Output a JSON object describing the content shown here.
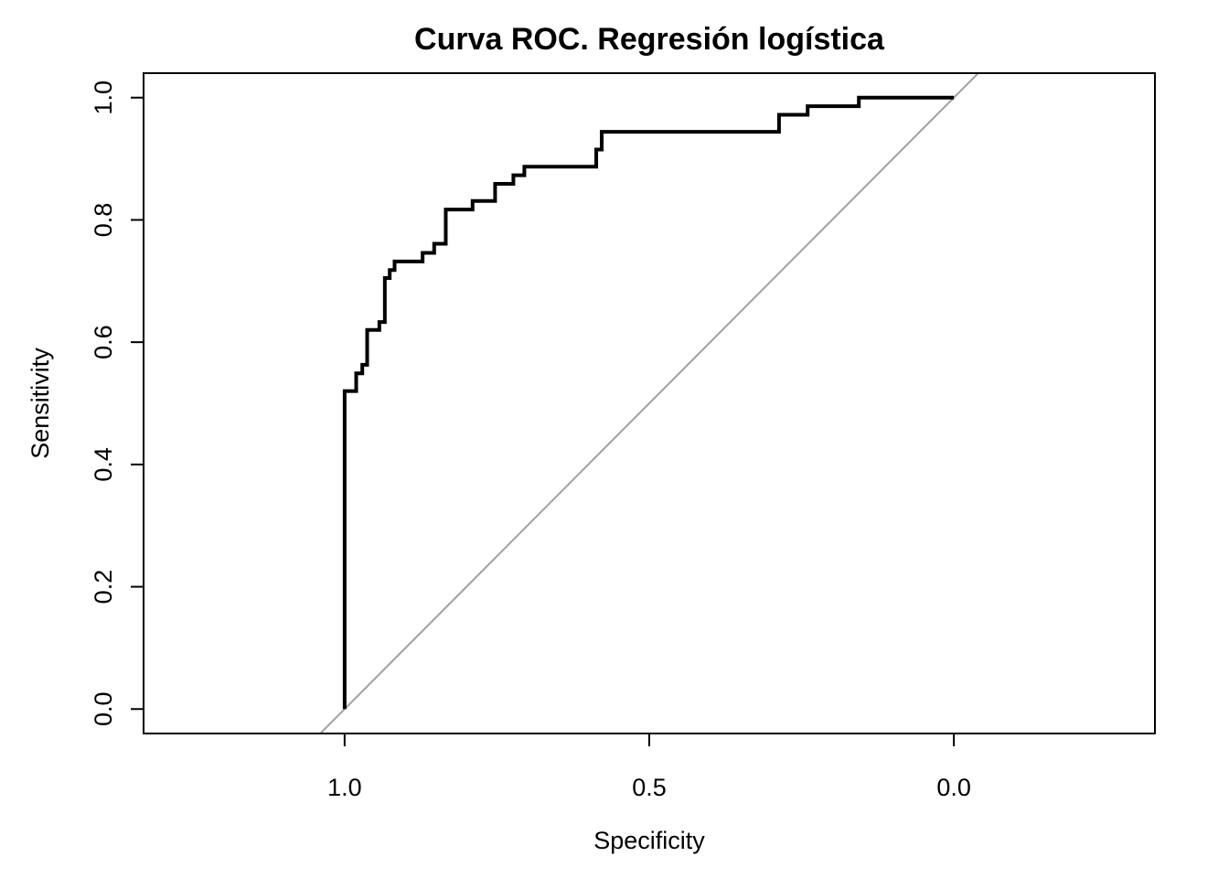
{
  "chart_data": {
    "type": "line",
    "title": "Curva ROC. Regresión logística",
    "xlabel": "Specificity",
    "ylabel": "Sensitivity",
    "x_reversed": true,
    "xlim": [
      1.33,
      -0.33
    ],
    "ylim": [
      -0.04,
      1.04
    ],
    "x_ticks": [
      {
        "value": 1.0,
        "label": "1.0"
      },
      {
        "value": 0.5,
        "label": "0.5"
      },
      {
        "value": 0.0,
        "label": "0.0"
      }
    ],
    "y_ticks": [
      {
        "value": 0.0,
        "label": "0.0"
      },
      {
        "value": 0.2,
        "label": "0.2"
      },
      {
        "value": 0.4,
        "label": "0.4"
      },
      {
        "value": 0.6,
        "label": "0.6"
      },
      {
        "value": 0.8,
        "label": "0.8"
      },
      {
        "value": 1.0,
        "label": "1.0"
      }
    ],
    "grid": false,
    "reference_line": {
      "from": [
        1.0,
        0.0
      ],
      "to": [
        0.0,
        1.0
      ],
      "color": "#a0a0a0"
    },
    "series": [
      {
        "color": "#000000",
        "points": [
          [
            1.0,
            0.0
          ],
          [
            1.0,
            0.52
          ],
          [
            0.981,
            0.52
          ],
          [
            0.981,
            0.549
          ],
          [
            0.971,
            0.549
          ],
          [
            0.971,
            0.563
          ],
          [
            0.963,
            0.563
          ],
          [
            0.963,
            0.62
          ],
          [
            0.943,
            0.62
          ],
          [
            0.943,
            0.633
          ],
          [
            0.934,
            0.633
          ],
          [
            0.934,
            0.705
          ],
          [
            0.926,
            0.705
          ],
          [
            0.926,
            0.718
          ],
          [
            0.918,
            0.718
          ],
          [
            0.918,
            0.732
          ],
          [
            0.872,
            0.732
          ],
          [
            0.872,
            0.746
          ],
          [
            0.853,
            0.746
          ],
          [
            0.853,
            0.761
          ],
          [
            0.834,
            0.761
          ],
          [
            0.834,
            0.817
          ],
          [
            0.79,
            0.817
          ],
          [
            0.79,
            0.831
          ],
          [
            0.753,
            0.831
          ],
          [
            0.753,
            0.859
          ],
          [
            0.723,
            0.859
          ],
          [
            0.723,
            0.873
          ],
          [
            0.705,
            0.873
          ],
          [
            0.705,
            0.887
          ],
          [
            0.587,
            0.887
          ],
          [
            0.587,
            0.915
          ],
          [
            0.578,
            0.915
          ],
          [
            0.578,
            0.944
          ],
          [
            0.287,
            0.944
          ],
          [
            0.287,
            0.972
          ],
          [
            0.24,
            0.972
          ],
          [
            0.24,
            0.986
          ],
          [
            0.156,
            0.986
          ],
          [
            0.156,
            1.0
          ],
          [
            0.0,
            1.0
          ]
        ]
      }
    ]
  }
}
